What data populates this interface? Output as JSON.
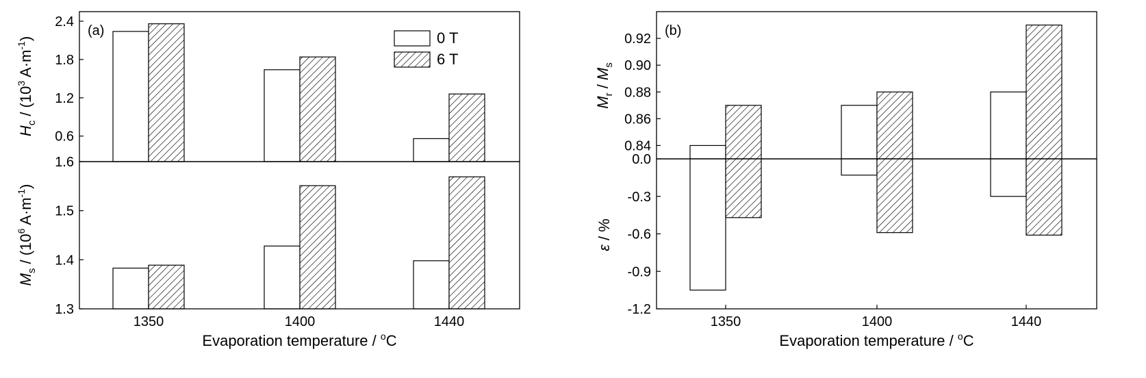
{
  "chart_data": [
    {
      "type": "bar",
      "panel": "(a)",
      "categories": [
        "1350",
        "1400",
        "1440"
      ],
      "xlabel": "Evaporation temperature / °C",
      "legend": [
        "0 T",
        "6 T"
      ],
      "legend_position": "top-right",
      "legend_style": {
        "0 T": "open",
        "6 T": "hatched"
      },
      "subplots": [
        {
          "ylabel": "Hc / (10^3 A·m^-1)",
          "ylim": [
            0.2,
            2.55
          ],
          "yticks": [
            0.6,
            1.2,
            1.8,
            2.4
          ],
          "series": [
            {
              "name": "0 T",
              "values": [
                2.24,
                1.64,
                0.56
              ]
            },
            {
              "name": "6 T",
              "values": [
                2.36,
                1.84,
                1.26
              ]
            }
          ]
        },
        {
          "ylabel": "Ms / (10^6 A·m^-1)",
          "ylim": [
            1.3,
            1.6
          ],
          "yticks": [
            1.3,
            1.4,
            1.5,
            1.6
          ],
          "series": [
            {
              "name": "0 T",
              "values": [
                1.383,
                1.428,
                1.398
              ]
            },
            {
              "name": "6 T",
              "values": [
                1.389,
                1.551,
                1.569
              ]
            }
          ]
        }
      ]
    },
    {
      "type": "bar",
      "panel": "(b)",
      "categories": [
        "1350",
        "1400",
        "1440"
      ],
      "xlabel": "Evaporation temperature / °C",
      "legend_style": {
        "0 T": "open",
        "6 T": "hatched"
      },
      "subplots": [
        {
          "ylabel": "Mr / Ms",
          "ylim": [
            0.83,
            0.94
          ],
          "yticks": [
            0.84,
            0.86,
            0.88,
            0.9,
            0.92
          ],
          "series": [
            {
              "name": "0 T",
              "values": [
                0.84,
                0.87,
                0.88
              ]
            },
            {
              "name": "6 T",
              "values": [
                0.87,
                0.88,
                0.93
              ]
            }
          ]
        },
        {
          "ylabel": "ε / %",
          "ylim": [
            -1.2,
            0.0
          ],
          "yticks": [
            0.0,
            -0.3,
            -0.6,
            -0.9,
            -1.2
          ],
          "series": [
            {
              "name": "0 T",
              "values": [
                -1.05,
                -0.13,
                -0.3
              ]
            },
            {
              "name": "6 T",
              "values": [
                -0.47,
                -0.59,
                -0.61
              ]
            }
          ]
        }
      ]
    }
  ]
}
